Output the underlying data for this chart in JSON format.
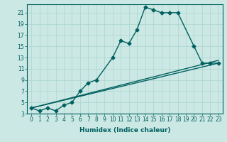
{
  "xlabel": "Humidex (Indice chaleur)",
  "bg_color": "#cce8e4",
  "grid_color": "#aad4cc",
  "line_color": "#006060",
  "xlim": [
    -0.5,
    23.5
  ],
  "ylim": [
    3,
    22.5
  ],
  "xticks": [
    0,
    1,
    2,
    3,
    4,
    5,
    6,
    7,
    8,
    9,
    10,
    11,
    12,
    13,
    14,
    15,
    16,
    17,
    18,
    19,
    20,
    21,
    22,
    23
  ],
  "yticks": [
    3,
    5,
    7,
    9,
    11,
    13,
    15,
    17,
    19,
    21
  ],
  "curve1_x": [
    0,
    1,
    2,
    3,
    4,
    5,
    6,
    7,
    8,
    10,
    11,
    12,
    13,
    14,
    15,
    16,
    17,
    18,
    20,
    21,
    22,
    23
  ],
  "curve1_y": [
    4,
    3.5,
    4,
    3.5,
    4.5,
    5,
    7,
    8.5,
    9,
    13,
    16,
    15.5,
    18,
    22,
    21.5,
    21,
    21,
    21,
    15,
    12,
    12,
    12
  ],
  "curve2_x": [
    0,
    23
  ],
  "curve2_y": [
    4,
    12
  ],
  "curve3_x": [
    0,
    23
  ],
  "curve3_y": [
    4,
    12.5
  ],
  "marker_size": 2.5,
  "line_width": 1.0,
  "tick_fontsize": 5.5,
  "xlabel_fontsize": 6.5
}
